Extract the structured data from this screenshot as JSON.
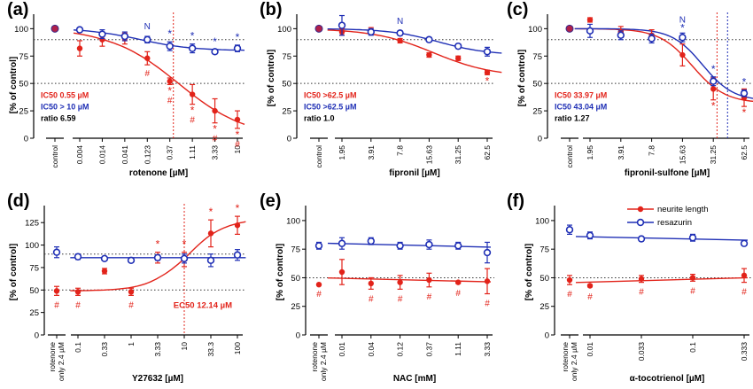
{
  "colors": {
    "neurite": "#e2231a",
    "resazurin": "#1f2fb5",
    "ratio": "#000000",
    "dashed_h": "#333333",
    "guide": "#e2231a"
  },
  "legend": {
    "neurite": "neurite length",
    "resazurin": "resazurin"
  },
  "chart_data": [
    {
      "panel": "(a)",
      "type": "line",
      "xlabel": "rotenone [µM]",
      "ylabel": "[% of control]",
      "ylim": [
        0,
        110
      ],
      "yticks": [
        0,
        25,
        50,
        75,
        100
      ],
      "control_label": "control",
      "control": {
        "neurite": 100,
        "resazurin": 100
      },
      "categories": [
        "0.004",
        "0.014",
        "0.041",
        "0.123",
        "0.37",
        "1.11",
        "3.33",
        "10"
      ],
      "series": [
        {
          "name": "neurite length",
          "values": [
            82,
            90,
            91,
            73,
            52,
            40,
            25,
            17
          ],
          "errors": [
            7,
            6,
            5,
            6,
            3,
            9,
            11,
            8
          ]
        },
        {
          "name": "resazurin",
          "values": [
            99,
            95,
            93,
            90,
            84,
            82,
            79,
            82
          ],
          "errors": [
            2,
            4,
            4,
            3,
            4,
            4,
            2,
            3
          ]
        }
      ],
      "ref_lines": [
        90,
        50
      ],
      "vline_at": "0.37",
      "vline_color": "red",
      "annotations": [
        "IC50 0.55 µM",
        "IC50 > 10 µM",
        "ratio 6.59"
      ],
      "marks_star_red": [
        "0.37",
        "1.11",
        "3.33",
        "10"
      ],
      "marks_hash_red": [
        "0.123",
        "0.37",
        "1.11",
        "3.33",
        "10"
      ],
      "marks_star_blue": [
        "0.37",
        "1.11",
        "3.33",
        "10"
      ],
      "marks_N_blue": [
        "0.123"
      ]
    },
    {
      "panel": "(b)",
      "type": "line",
      "xlabel": "fipronil [µM]",
      "ylabel": "[% of control]",
      "ylim": [
        0,
        110
      ],
      "yticks": [
        0,
        25,
        50,
        75,
        100
      ],
      "control_label": "control",
      "control": {
        "neurite": 100,
        "resazurin": 100
      },
      "categories": [
        "1.95",
        "3.91",
        "7.8",
        "15.63",
        "31.25",
        "62.5"
      ],
      "series": [
        {
          "name": "neurite length",
          "values": [
            97,
            98,
            89,
            76,
            73,
            60
          ],
          "errors": [
            3,
            3,
            2,
            2,
            2,
            2
          ]
        },
        {
          "name": "resazurin",
          "values": [
            103,
            97,
            96,
            90,
            84,
            79
          ],
          "errors": [
            9,
            3,
            2,
            2,
            2,
            4
          ]
        }
      ],
      "ref_lines": [
        90,
        50
      ],
      "annotations": [
        "IC50 >62.5 µM",
        "IC50 >62.5 µM",
        "ratio 1.0"
      ],
      "marks_star_red": [
        "62.5"
      ],
      "marks_hash_red": [],
      "marks_star_blue": [],
      "marks_N_blue": [
        "7.8"
      ]
    },
    {
      "panel": "(c)",
      "type": "line",
      "xlabel": "fipronil-sulfone [µM]",
      "ylabel": "[% of control]",
      "ylim": [
        0,
        110
      ],
      "yticks": [
        0,
        25,
        50,
        75,
        100
      ],
      "control_label": "control",
      "control": {
        "neurite": 100,
        "resazurin": 100
      },
      "categories": [
        "1.95",
        "3.91",
        "7.8",
        "15.63",
        "31.25",
        "62.5"
      ],
      "series": [
        {
          "name": "neurite length",
          "values": [
            108,
            97,
            94,
            76,
            45,
            37
          ],
          "errors": [
            2,
            5,
            5,
            10,
            10,
            8
          ]
        },
        {
          "name": "resazurin",
          "values": [
            98,
            94,
            91,
            92,
            52,
            41
          ],
          "errors": [
            6,
            4,
            4,
            4,
            4,
            3
          ]
        }
      ],
      "ref_lines": [
        90,
        50
      ],
      "vlines_data_x": [
        33.97,
        43.04
      ],
      "annotations": [
        "IC50 33.97 µM",
        "IC50 43.04 µM",
        "ratio 1.27"
      ],
      "marks_star_red": [
        "31.25",
        "62.5"
      ],
      "marks_hash_red": [],
      "marks_star_blue": [
        "15.63",
        "31.25",
        "62.5"
      ],
      "marks_N_blue": [
        "15.63"
      ]
    },
    {
      "panel": "(d)",
      "type": "line",
      "xlabel": "Y27632 [µM]",
      "ylabel": "[% of control]",
      "ylim": [
        0,
        140
      ],
      "yticks": [
        0,
        25,
        50,
        75,
        100,
        125
      ],
      "control_label": "rotenone only 2.4 µM",
      "control": {
        "neurite": 49,
        "resazurin": 92
      },
      "control_errors": {
        "neurite": 5,
        "resazurin": 6
      },
      "categories": [
        "0.1",
        "0.33",
        "1",
        "3.33",
        "10",
        "33.3",
        "100"
      ],
      "series": [
        {
          "name": "neurite length",
          "values": [
            48,
            71,
            48,
            86,
            84,
            113,
            122
          ],
          "errors": [
            4,
            3,
            4,
            6,
            8,
            15,
            10
          ]
        },
        {
          "name": "resazurin",
          "values": [
            87,
            85,
            83,
            86,
            85,
            83,
            89
          ],
          "errors": [
            3,
            2,
            2,
            3,
            5,
            7,
            6
          ]
        }
      ],
      "ref_lines": [
        90,
        50
      ],
      "vline_at": "10",
      "vline_color": "red",
      "annotations": [
        "EC50 12.14 µM"
      ],
      "marks_star_red": [
        "3.33",
        "10",
        "33.3",
        "100"
      ],
      "marks_hash_red": [
        "control",
        "0.1",
        "1"
      ],
      "marks_star_blue": [],
      "marks_N_blue": []
    },
    {
      "panel": "(e)",
      "type": "line",
      "xlabel": "NAC [mM]",
      "ylabel": "[% of control]",
      "ylim": [
        0,
        110
      ],
      "yticks": [
        0,
        25,
        50,
        75,
        100
      ],
      "control_label": "rotenone only 2.4 µM",
      "control": {
        "neurite": 44,
        "resazurin": 78
      },
      "control_errors": {
        "neurite": 0,
        "resazurin": 3
      },
      "categories": [
        "0.01",
        "0.04",
        "0.12",
        "0.37",
        "1.11",
        "3.33"
      ],
      "series": [
        {
          "name": "neurite length",
          "values": [
            55,
            45,
            46,
            48,
            46,
            47
          ],
          "errors": [
            11,
            5,
            6,
            6,
            1,
            11
          ]
        },
        {
          "name": "resazurin",
          "values": [
            80,
            82,
            78,
            79,
            78,
            72
          ],
          "errors": [
            5,
            3,
            3,
            4,
            3,
            9
          ]
        }
      ],
      "ref_lines": [
        50
      ],
      "annotations": [],
      "marks_star_red": [],
      "marks_hash_red": [
        "control",
        "0.04",
        "0.12",
        "0.37",
        "1.11",
        "3.33"
      ],
      "marks_star_blue": [],
      "marks_N_blue": []
    },
    {
      "panel": "(f)",
      "type": "line",
      "xlabel": "α-tocotrienol [µM]",
      "ylabel": "[% of control]",
      "ylim": [
        0,
        110
      ],
      "yticks": [
        0,
        25,
        50,
        75,
        100
      ],
      "control_label": "rotenone only 2.4 µM",
      "control": {
        "neurite": 48,
        "resazurin": 92
      },
      "control_errors": {
        "neurite": 4,
        "resazurin": 4
      },
      "categories": [
        "0.01",
        "0.033",
        "0.1",
        "0.333"
      ],
      "series": [
        {
          "name": "neurite length",
          "values": [
            43,
            49,
            50,
            52
          ],
          "errors": [
            1,
            3,
            3,
            6
          ]
        },
        {
          "name": "resazurin",
          "values": [
            87,
            84,
            85,
            80
          ],
          "errors": [
            3,
            2,
            3,
            2
          ]
        }
      ],
      "ref_lines": [
        50
      ],
      "annotations": [],
      "marks_star_red": [],
      "marks_hash_red": [
        "control",
        "0.01",
        "0.033",
        "0.1",
        "0.333"
      ],
      "marks_star_blue": [],
      "marks_N_blue": []
    }
  ]
}
